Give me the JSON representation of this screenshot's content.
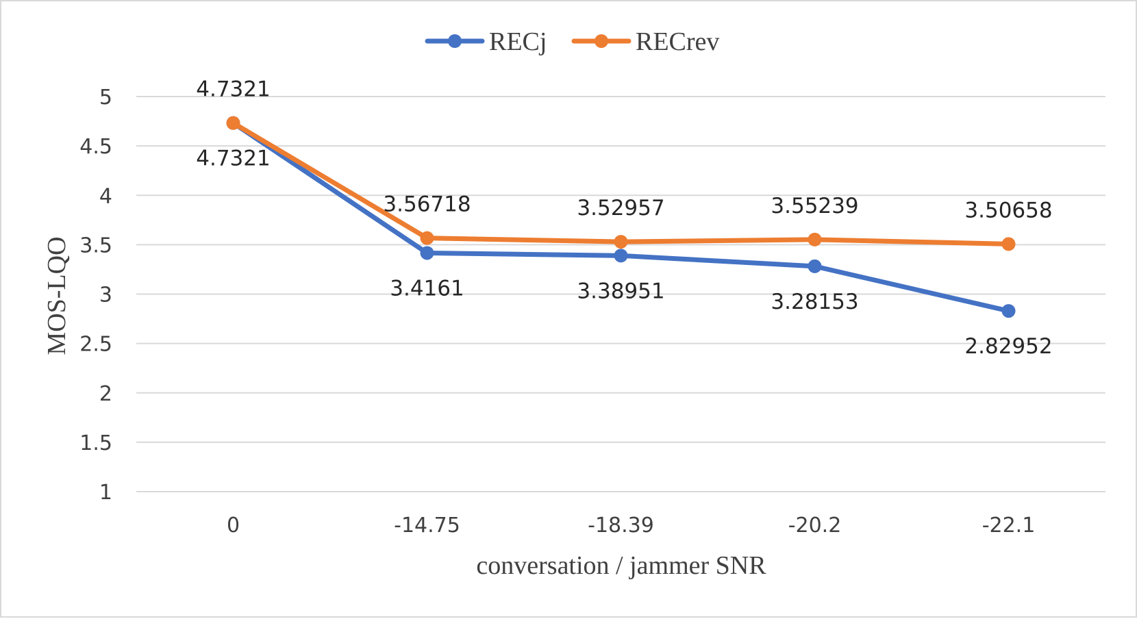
{
  "chart_data": {
    "type": "line",
    "title": "",
    "xlabel": "conversation / jammer SNR",
    "ylabel": "MOS-LQO",
    "categories": [
      "0",
      "-14.75",
      "-18.39",
      "-20.2",
      "-22.1"
    ],
    "ylim": [
      1,
      5
    ],
    "yticks": [
      1,
      1.5,
      2,
      2.5,
      3,
      3.5,
      4,
      4.5,
      5
    ],
    "ytick_labels": [
      "1",
      "1.5",
      "2",
      "2.5",
      "3",
      "3.5",
      "4",
      "4.5",
      "5"
    ],
    "grid": true,
    "legend_position": "top-center",
    "series": [
      {
        "name": "RECj",
        "color": "#4472c4",
        "values": [
          4.7321,
          3.4161,
          3.38951,
          3.28153,
          2.82952
        ],
        "labels": [
          "4.7321",
          "3.4161",
          "3.38951",
          "3.28153",
          "2.82952"
        ],
        "label_position": "below"
      },
      {
        "name": "RECrev",
        "color": "#ed7d31",
        "values": [
          4.7321,
          3.56718,
          3.52957,
          3.55239,
          3.50658
        ],
        "labels": [
          "4.7321",
          "3.56718",
          "3.52957",
          "3.55239",
          "3.50658"
        ],
        "label_position": "above"
      }
    ]
  }
}
